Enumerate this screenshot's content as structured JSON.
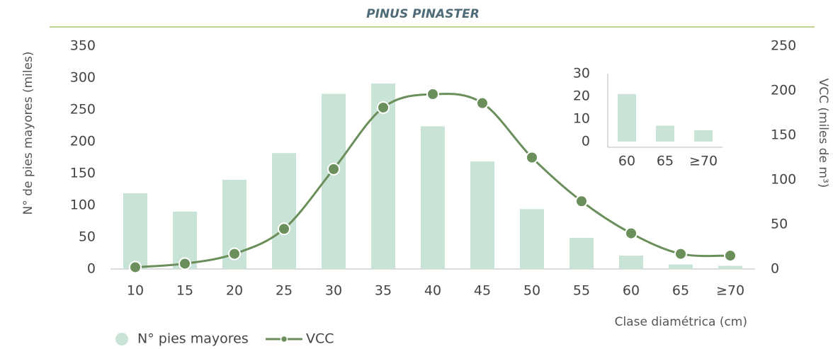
{
  "chart_data": [
    {
      "type": "bar",
      "title": "PINUS PINASTER",
      "y_label": "N° de pies mayores (miles)",
      "y2_label": "VCC (miles de m³)",
      "x_label": "Clase diamétrica (cm)",
      "categories": [
        "10",
        "15",
        "20",
        "25",
        "30",
        "35",
        "40",
        "45",
        "50",
        "55",
        "60",
        "65",
        "≥70"
      ],
      "series": [
        {
          "name": "N° pies mayores",
          "type": "bar",
          "color": "#c9e4d6",
          "values": [
            119,
            90,
            140,
            182,
            275,
            291,
            224,
            169,
            94,
            49,
            21,
            7,
            5
          ]
        },
        {
          "name": "VCC",
          "type": "line",
          "axis": "y2",
          "color": "#6b8f5b",
          "values": [
            2,
            6,
            17,
            45,
            112,
            181,
            196,
            186,
            125,
            76,
            40,
            17,
            15
          ]
        }
      ],
      "ylim": [
        0,
        350
      ],
      "yticks": [
        0,
        50,
        100,
        150,
        200,
        250,
        300,
        350
      ],
      "y2lim": [
        0,
        250
      ],
      "y2ticks": [
        0,
        50,
        100,
        150,
        200,
        250
      ],
      "legend": "bottom-left"
    },
    {
      "type": "bar",
      "categories": [
        "60",
        "65",
        "≥70"
      ],
      "values": [
        21,
        7,
        5
      ],
      "color": "#c9e4d6",
      "ylim": [
        0,
        30
      ],
      "yticks": [
        0,
        10,
        20,
        30
      ]
    }
  ]
}
